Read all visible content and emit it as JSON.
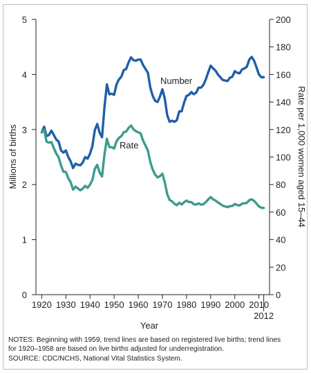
{
  "chart_data": {
    "type": "line",
    "xlabel": "Year",
    "ylabel_left": "Millions of births",
    "ylabel_right": "Rate per 1,000 women aged 15–44",
    "xlim": [
      1920,
      2012
    ],
    "ylim_left": [
      0,
      5
    ],
    "ylim_right": [
      0,
      200
    ],
    "x_ticks": [
      1920,
      1930,
      1940,
      1950,
      1960,
      1970,
      1980,
      1990,
      2000,
      2010
    ],
    "x_tick_labels": [
      "1920",
      "1930",
      "1940",
      "1950",
      "1960",
      "1970",
      "1980",
      "1990",
      "2000",
      "2010"
    ],
    "x_extra_label": "2012",
    "y_left_ticks": [
      0,
      1,
      2,
      3,
      4,
      5
    ],
    "y_left_tick_labels": [
      "0",
      "1",
      "2",
      "3",
      "4",
      "5"
    ],
    "y_right_ticks": [
      0,
      20,
      40,
      60,
      80,
      100,
      120,
      140,
      160,
      180,
      200
    ],
    "y_right_tick_labels": [
      "0",
      "20",
      "40",
      "60",
      "80",
      "100",
      "120",
      "140",
      "160",
      "180",
      "200"
    ],
    "grid": false,
    "series": [
      {
        "name": "Number",
        "axis": "left",
        "color": "#1f5fa8",
        "x": [
          1920,
          1921,
          1922,
          1923,
          1924,
          1925,
          1926,
          1927,
          1928,
          1929,
          1930,
          1931,
          1932,
          1933,
          1934,
          1935,
          1936,
          1937,
          1938,
          1939,
          1940,
          1941,
          1942,
          1943,
          1944,
          1945,
          1946,
          1947,
          1948,
          1949,
          1950,
          1951,
          1952,
          1953,
          1954,
          1955,
          1956,
          1957,
          1958,
          1959,
          1960,
          1961,
          1962,
          1963,
          1964,
          1965,
          1966,
          1967,
          1968,
          1969,
          1970,
          1971,
          1972,
          1973,
          1974,
          1975,
          1976,
          1977,
          1978,
          1979,
          1980,
          1981,
          1982,
          1983,
          1984,
          1985,
          1986,
          1987,
          1988,
          1989,
          1990,
          1991,
          1992,
          1993,
          1994,
          1995,
          1996,
          1997,
          1998,
          1999,
          2000,
          2001,
          2002,
          2003,
          2004,
          2005,
          2006,
          2007,
          2008,
          2009,
          2010,
          2011,
          2012
        ],
        "values": [
          2.95,
          3.05,
          2.88,
          2.9,
          2.98,
          2.9,
          2.82,
          2.78,
          2.62,
          2.58,
          2.62,
          2.5,
          2.42,
          2.3,
          2.38,
          2.36,
          2.35,
          2.4,
          2.5,
          2.47,
          2.56,
          2.7,
          2.99,
          3.1,
          2.94,
          2.86,
          3.41,
          3.82,
          3.64,
          3.65,
          3.63,
          3.82,
          3.91,
          3.96,
          4.08,
          4.1,
          4.22,
          4.31,
          4.26,
          4.25,
          4.27,
          4.27,
          4.17,
          4.1,
          4.03,
          3.76,
          3.61,
          3.52,
          3.5,
          3.6,
          3.73,
          3.56,
          3.26,
          3.14,
          3.16,
          3.14,
          3.17,
          3.33,
          3.33,
          3.49,
          3.61,
          3.63,
          3.68,
          3.64,
          3.67,
          3.76,
          3.76,
          3.81,
          3.91,
          4.04,
          4.16,
          4.11,
          4.07,
          4.0,
          3.95,
          3.9,
          3.89,
          3.88,
          3.94,
          3.96,
          4.06,
          4.03,
          4.02,
          4.09,
          4.11,
          4.14,
          4.27,
          4.32,
          4.25,
          4.13,
          4.0,
          3.95,
          3.95
        ]
      },
      {
        "name": "Rate",
        "axis": "right",
        "color": "#3d9b8c",
        "x": [
          1920,
          1921,
          1922,
          1923,
          1924,
          1925,
          1926,
          1927,
          1928,
          1929,
          1930,
          1931,
          1932,
          1933,
          1934,
          1935,
          1936,
          1937,
          1938,
          1939,
          1940,
          1941,
          1942,
          1943,
          1944,
          1945,
          1946,
          1947,
          1948,
          1949,
          1950,
          1951,
          1952,
          1953,
          1954,
          1955,
          1956,
          1957,
          1958,
          1959,
          1960,
          1961,
          1962,
          1963,
          1964,
          1965,
          1966,
          1967,
          1968,
          1969,
          1970,
          1971,
          1972,
          1973,
          1974,
          1975,
          1976,
          1977,
          1978,
          1979,
          1980,
          1981,
          1982,
          1983,
          1984,
          1985,
          1986,
          1987,
          1988,
          1989,
          1990,
          1991,
          1992,
          1993,
          1994,
          1995,
          1996,
          1997,
          1998,
          1999,
          2000,
          2001,
          2002,
          2003,
          2004,
          2005,
          2006,
          2007,
          2008,
          2009,
          2010,
          2011,
          2012
        ],
        "values": [
          117.9,
          119.8,
          111.2,
          110.5,
          110.9,
          106.6,
          102.6,
          99.8,
          93.8,
          89.3,
          89.2,
          84.6,
          81.7,
          76.3,
          78.5,
          77.2,
          75.8,
          77.1,
          79.1,
          77.6,
          79.9,
          83.4,
          91.5,
          94.3,
          88.8,
          85.9,
          101.9,
          113.3,
          107.3,
          107.1,
          106.2,
          111.5,
          113.9,
          115.2,
          118.1,
          118.5,
          121.2,
          122.9,
          120.2,
          118.8,
          118.0,
          117.1,
          112.0,
          108.3,
          104.7,
          96.3,
          90.8,
          87.2,
          85.2,
          86.1,
          87.9,
          81.6,
          73.1,
          68.8,
          67.8,
          66.0,
          65.0,
          66.8,
          65.5,
          67.2,
          68.4,
          67.3,
          67.3,
          65.7,
          65.5,
          66.3,
          65.4,
          65.7,
          67.2,
          69.2,
          70.9,
          69.3,
          68.4,
          67.0,
          65.9,
          64.6,
          64.1,
          63.6,
          64.3,
          64.4,
          65.9,
          65.1,
          64.8,
          66.1,
          66.4,
          66.7,
          68.6,
          69.3,
          68.1,
          66.2,
          64.1,
          63.2,
          63.0
        ]
      }
    ],
    "annotations": [
      "Number",
      "Rate"
    ]
  },
  "notes": {
    "line1": "NOTES: Beginning with 1959, trend lines are based on registered live births; trend lines",
    "line2": "for 1920–1958 are based on live births adjusted for underregistration.",
    "line3": "SOURCE: CDC/NCHS, National Vital Statistics System."
  }
}
